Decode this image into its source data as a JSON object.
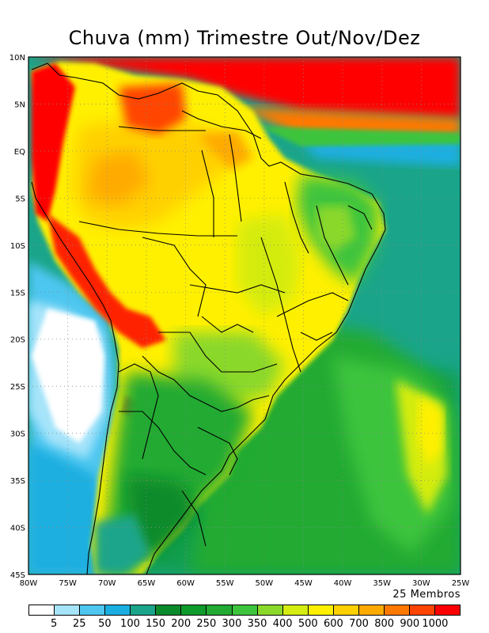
{
  "title": "Chuva (mm) Trimestre Out/Nov/Dez",
  "members_label": "25 Membros",
  "axes": {
    "lon_ticks": [
      "80W",
      "75W",
      "70W",
      "65W",
      "60W",
      "55W",
      "50W",
      "45W",
      "40W",
      "35W",
      "30W",
      "25W"
    ],
    "lat_ticks": [
      "10N",
      "5N",
      "EQ",
      "5S",
      "10S",
      "15S",
      "20S",
      "25S",
      "30S",
      "35S",
      "40S",
      "45S"
    ]
  },
  "colorbar": {
    "levels": [
      "5",
      "25",
      "50",
      "100",
      "150",
      "200",
      "250",
      "300",
      "350",
      "400",
      "500",
      "600",
      "700",
      "800",
      "900",
      "1000"
    ],
    "colors": [
      "#ffffff",
      "#a6e4fa",
      "#4ec6f0",
      "#1aafe0",
      "#1aa58a",
      "#0b8a2c",
      "#0f9a2c",
      "#22aa32",
      "#3ec43c",
      "#8ad82a",
      "#d4ec10",
      "#fff000",
      "#ffd000",
      "#ffaa00",
      "#ff7800",
      "#ff4400",
      "#ff0000"
    ]
  },
  "colors": {
    "ocean_south": "#1aa58a",
    "land_base": "#fff000",
    "coast_outline": "#000000"
  }
}
